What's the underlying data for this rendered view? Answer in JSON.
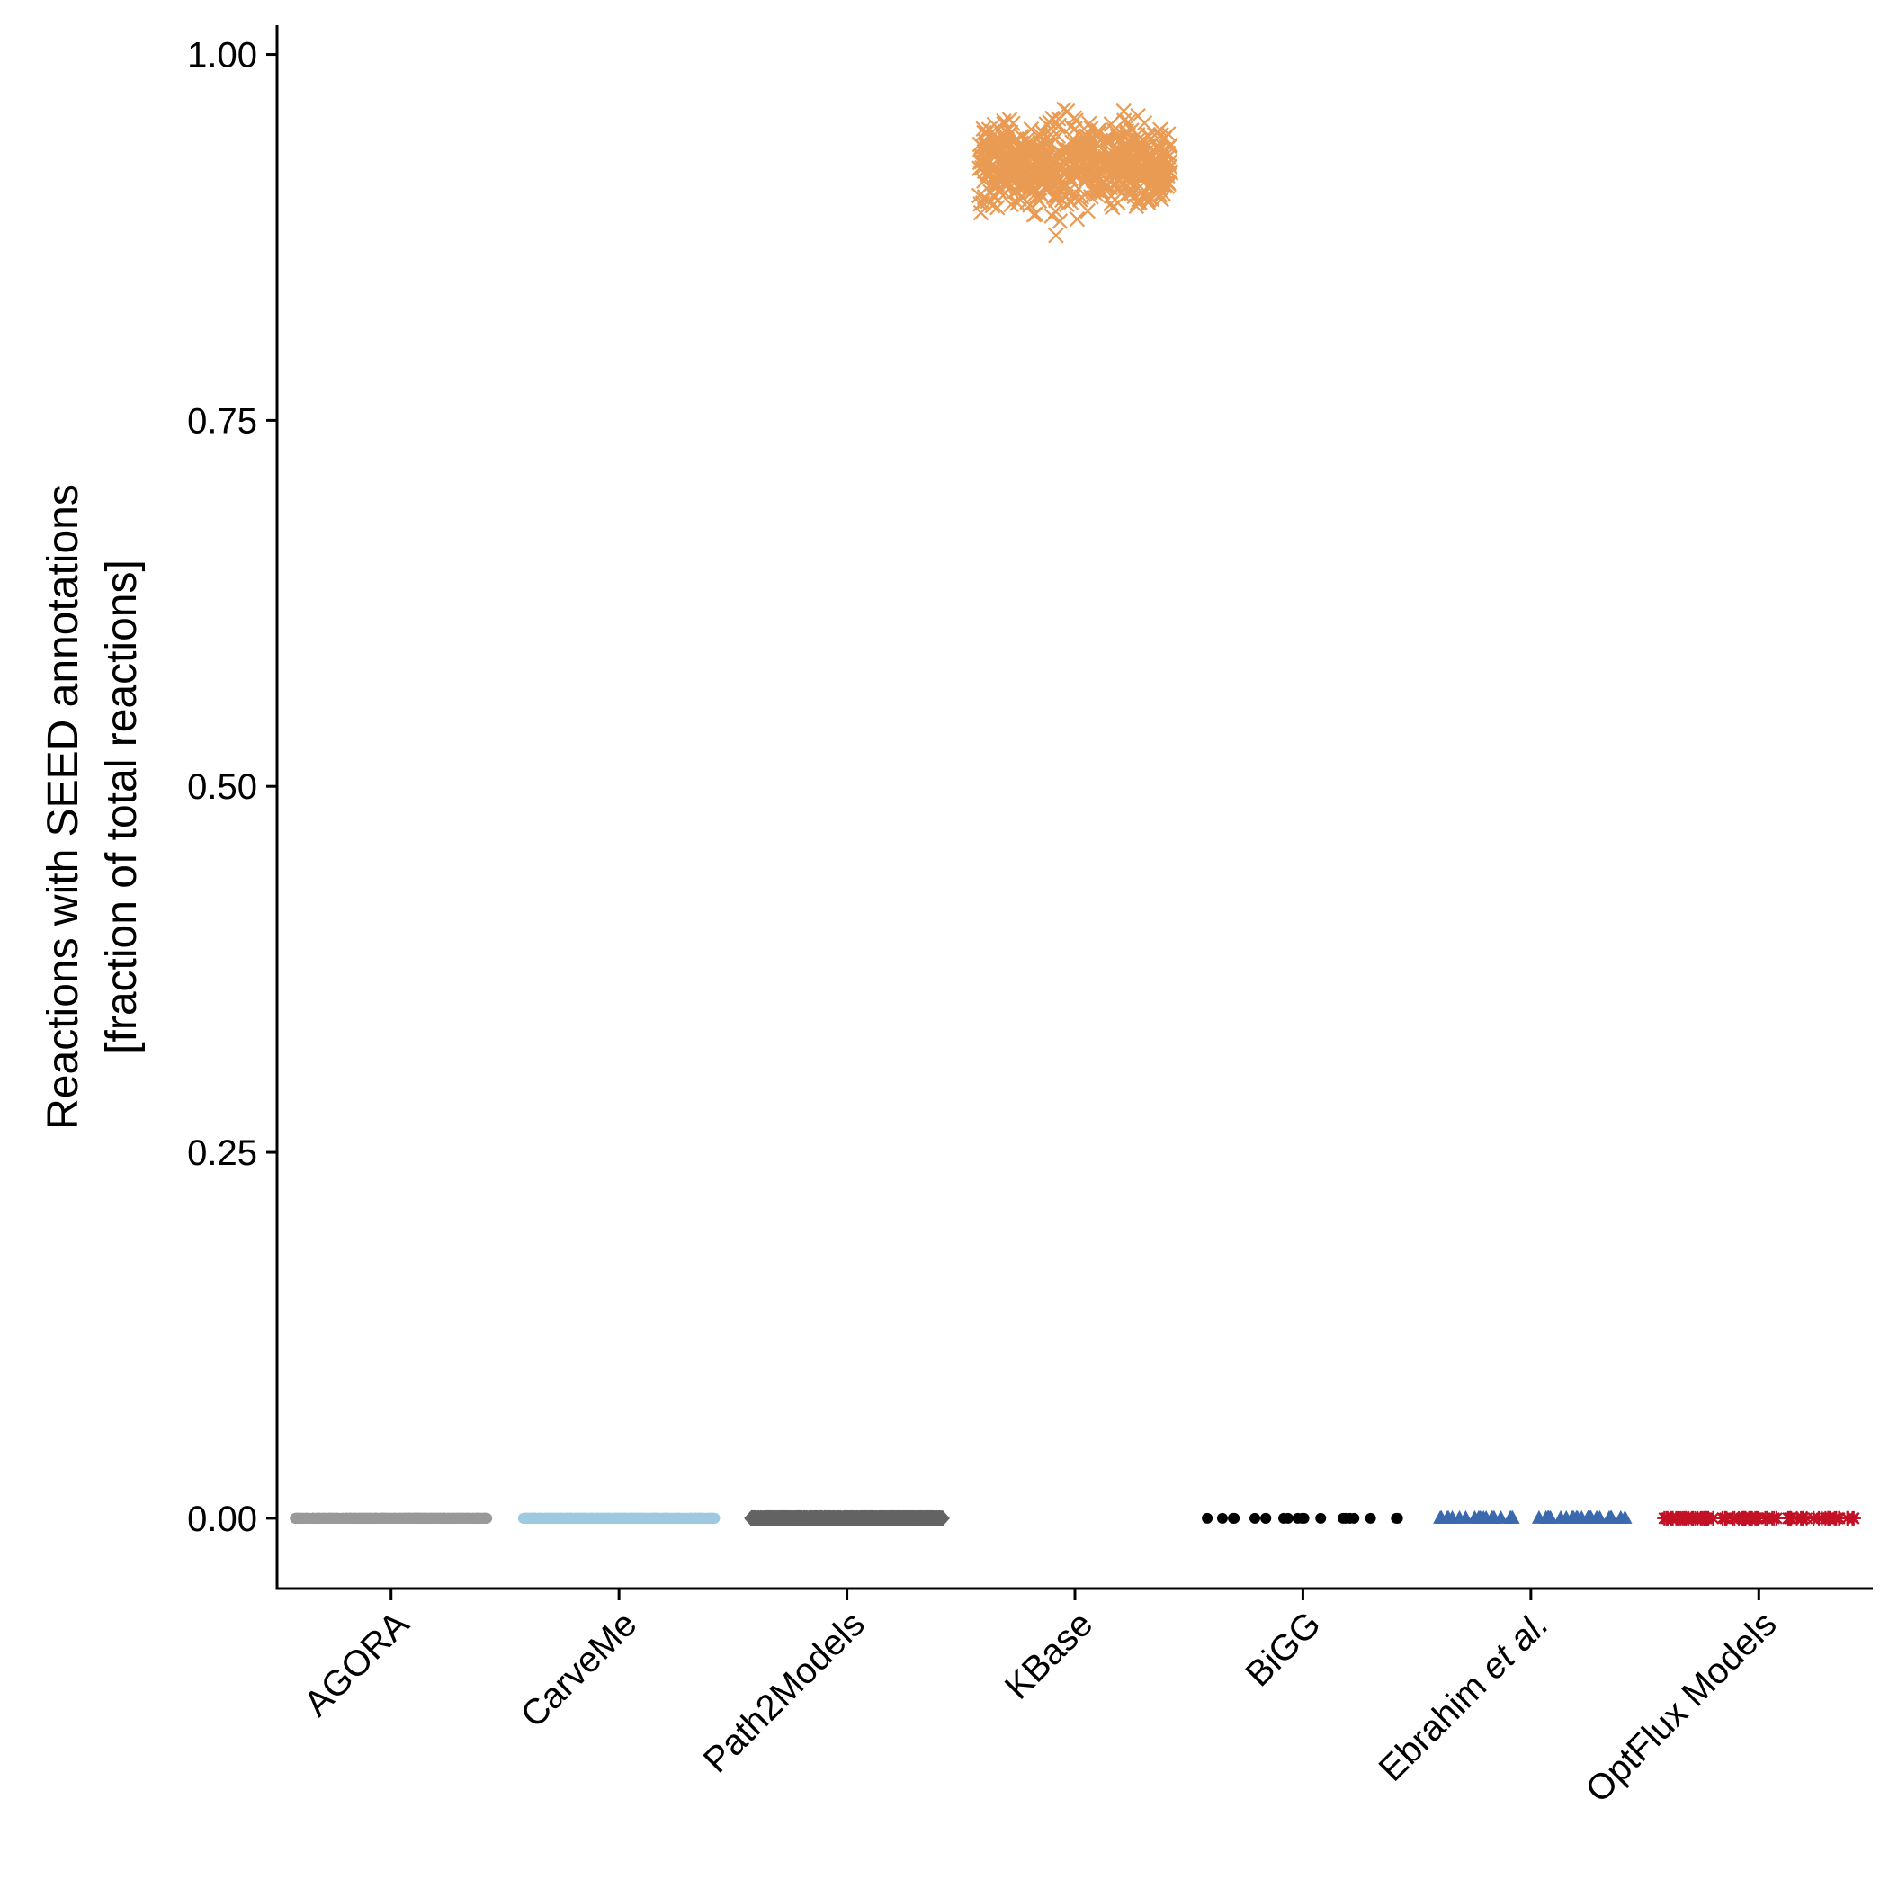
{
  "chart_data": {
    "type": "scatter",
    "title": "",
    "xlabel": "",
    "ylabel_line1": "Reactions with SEED annotations",
    "ylabel_line2": "[fraction of total reactions]",
    "ylim": [
      -0.048,
      1.02
    ],
    "y_ticks": [
      "0.00",
      "0.25",
      "0.50",
      "0.75",
      "1.00"
    ],
    "y_tick_values": [
      0,
      0.25,
      0.5,
      0.75,
      1.0
    ],
    "grid": false,
    "legend": "none",
    "categories": [
      "AGORA",
      "CarveMe",
      "Path2Models",
      "KBase",
      "BiGG",
      "Ebrahim et al.",
      "OptFlux Models"
    ],
    "ebrahim_label": {
      "main": "Ebrahim ",
      "italic": "et al."
    },
    "series": [
      {
        "category": "AGORA",
        "marker": "circle",
        "color": "#999999",
        "n": 800,
        "center": 0.0,
        "spread": 0.0,
        "jitter": 0.42
      },
      {
        "category": "CarveMe",
        "marker": "circle",
        "color": "#9ECAE1",
        "n": 800,
        "center": 0.0,
        "spread": 0.0,
        "jitter": 0.42
      },
      {
        "category": "Path2Models",
        "marker": "diamond",
        "color": "#636363",
        "n": 800,
        "center": 0.0,
        "spread": 0.0,
        "jitter": 0.42
      },
      {
        "category": "KBase",
        "marker": "x",
        "color": "#E99B54",
        "n": 700,
        "center": 0.925,
        "spread": 0.012,
        "jitter": 0.42
      },
      {
        "category": "BiGG",
        "marker": "circle",
        "color": "#000000",
        "n": 20,
        "center": 0.0,
        "spread": 0.0,
        "jitter": 0.42
      },
      {
        "category": "Ebrahim et al.",
        "marker": "triangle",
        "color": "#3A69AE",
        "n": 50,
        "center": 0.0,
        "spread": 0.0,
        "jitter": 0.42
      },
      {
        "category": "OptFlux Models",
        "marker": "asterisk",
        "color": "#C21025",
        "n": 90,
        "center": 0.0,
        "spread": 0.0,
        "jitter": 0.42
      }
    ]
  }
}
